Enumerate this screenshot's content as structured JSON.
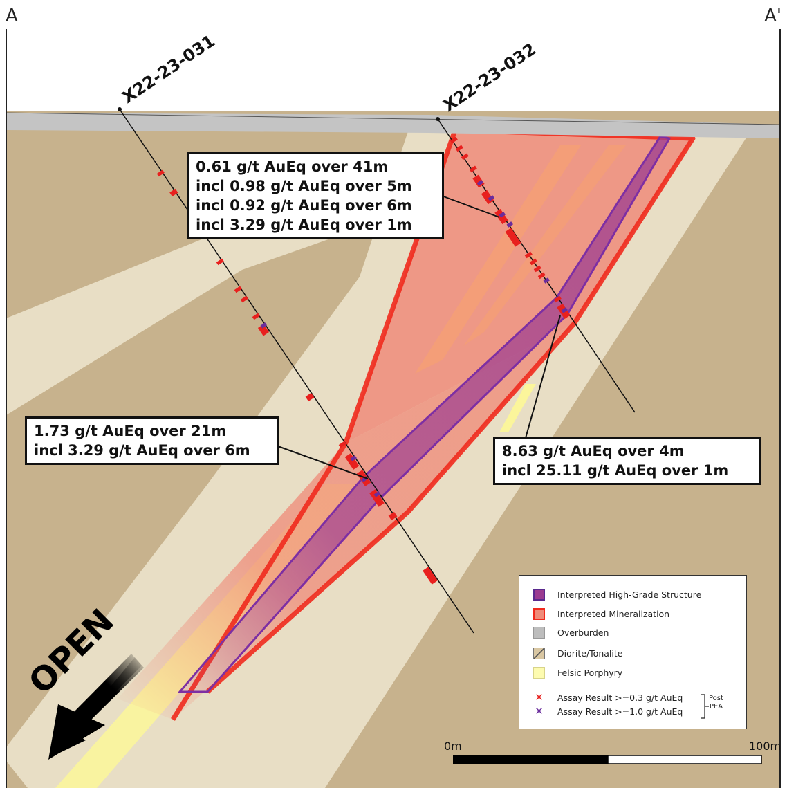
{
  "section": {
    "start_label": "A",
    "end_label": "A'"
  },
  "drill_holes": [
    {
      "id": "X22-23-031"
    },
    {
      "id": "X22-23-032"
    }
  ],
  "callouts": {
    "hole_032_upper": [
      "0.61 g/t AuEq over 41m",
      "incl 0.98 g/t AuEq over 5m",
      "incl 0.92 g/t AuEq over 6m",
      "incl 3.29 g/t AuEq over 1m"
    ],
    "hole_031": [
      "1.73 g/t AuEq over 21m",
      "incl 3.29 g/t AuEq over 6m"
    ],
    "hole_032_deep": [
      "8.63 g/t AuEq over 4m",
      "incl 25.11 g/t AuEq over 1m"
    ]
  },
  "open_label": "OPEN",
  "legend": {
    "items": [
      {
        "label": "Interpreted High-Grade Structure",
        "color": "#9b3b91"
      },
      {
        "label": "Interpreted Mineralization",
        "color": "#ef8c7a"
      },
      {
        "label": "Overburden",
        "color": "#bdbdbd"
      },
      {
        "label": "Diorite/Tonalite",
        "color": "#d9c7a3"
      },
      {
        "label": "Felsic Porphyry",
        "color": "#fdfbb0"
      }
    ],
    "assays": [
      {
        "label": "Assay Result >=0.3 g/t AuEq",
        "color": "#e8201e"
      },
      {
        "label": "Assay Result >=1.0 g/t AuEq",
        "color": "#6a2d9c"
      }
    ],
    "bracket_label_1": "Post",
    "bracket_label_2": "PEA"
  },
  "scale_bar": {
    "start_label": "0m",
    "end_label": "100m"
  },
  "colors": {
    "host_rock": "#c7b28d",
    "porphyry_halo": "#e8dec5",
    "porphyry_core": "#fbf59b",
    "overburden": "#c4c4c4",
    "mineralization_outline": "#f02a1d",
    "mineralization_fill": "#ef8c7a",
    "high_grade": "#9b3b91"
  }
}
